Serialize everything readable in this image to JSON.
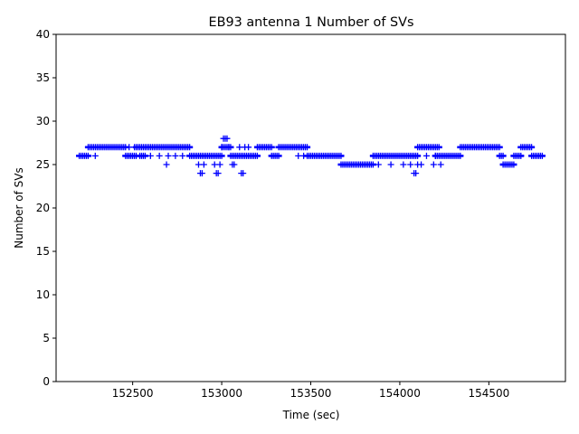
{
  "chart_data": {
    "type": "scatter",
    "title": "EB93 antenna 1 Number of SVs",
    "xlabel": "Time (sec)",
    "ylabel": "Number of SVs",
    "xlim": [
      152070,
      154930
    ],
    "ylim": [
      0,
      40
    ],
    "xticks": [
      152500,
      153000,
      153500,
      154000,
      154500
    ],
    "yticks": [
      0,
      5,
      10,
      15,
      20,
      25,
      30,
      35,
      40
    ],
    "grid": false,
    "marker": "+",
    "marker_color": "#0000ff",
    "series": [
      {
        "segments": [
          {
            "x0": 152200,
            "x1": 152250,
            "y": 26
          },
          {
            "x0": 152250,
            "x1": 152460,
            "y": 27
          },
          {
            "x0": 152460,
            "x1": 152520,
            "y": 26
          },
          {
            "x0": 152520,
            "x1": 152560,
            "y": 27
          },
          {
            "x0": 152540,
            "x1": 152570,
            "y": 26
          },
          {
            "x0": 152570,
            "x1": 152820,
            "y": 27
          },
          {
            "x0": 152820,
            "x1": 153000,
            "y": 26
          },
          {
            "x0": 153000,
            "x1": 153050,
            "y": 27
          },
          {
            "x0": 153050,
            "x1": 153200,
            "y": 26
          },
          {
            "x0": 153200,
            "x1": 153280,
            "y": 27
          },
          {
            "x0": 153280,
            "x1": 153320,
            "y": 26
          },
          {
            "x0": 153320,
            "x1": 153480,
            "y": 27
          },
          {
            "x0": 153480,
            "x1": 153670,
            "y": 26
          },
          {
            "x0": 153670,
            "x1": 153850,
            "y": 25
          },
          {
            "x0": 153850,
            "x1": 154100,
            "y": 26
          },
          {
            "x0": 154100,
            "x1": 154220,
            "y": 27
          },
          {
            "x0": 154200,
            "x1": 154340,
            "y": 26
          },
          {
            "x0": 154340,
            "x1": 154560,
            "y": 27
          },
          {
            "x0": 154560,
            "x1": 154580,
            "y": 26
          },
          {
            "x0": 154580,
            "x1": 154640,
            "y": 25
          },
          {
            "x0": 154640,
            "x1": 154680,
            "y": 26
          },
          {
            "x0": 154680,
            "x1": 154740,
            "y": 27
          },
          {
            "x0": 154740,
            "x1": 154800,
            "y": 26
          }
        ],
        "points": [
          {
            "x": 152290,
            "y": 26
          },
          {
            "x": 152480,
            "y": 27
          },
          {
            "x": 152510,
            "y": 27
          },
          {
            "x": 152600,
            "y": 26
          },
          {
            "x": 152650,
            "y": 26
          },
          {
            "x": 152690,
            "y": 25
          },
          {
            "x": 152700,
            "y": 26
          },
          {
            "x": 152740,
            "y": 26
          },
          {
            "x": 152780,
            "y": 26
          },
          {
            "x": 152870,
            "y": 25
          },
          {
            "x": 152880,
            "y": 24
          },
          {
            "x": 152890,
            "y": 24
          },
          {
            "x": 152900,
            "y": 25
          },
          {
            "x": 152960,
            "y": 25
          },
          {
            "x": 152970,
            "y": 24
          },
          {
            "x": 152980,
            "y": 24
          },
          {
            "x": 152990,
            "y": 25
          },
          {
            "x": 153000,
            "y": 27
          },
          {
            "x": 153010,
            "y": 28
          },
          {
            "x": 153020,
            "y": 28
          },
          {
            "x": 153030,
            "y": 28
          },
          {
            "x": 153040,
            "y": 27
          },
          {
            "x": 153060,
            "y": 25
          },
          {
            "x": 153070,
            "y": 25
          },
          {
            "x": 153100,
            "y": 27
          },
          {
            "x": 153110,
            "y": 24
          },
          {
            "x": 153120,
            "y": 24
          },
          {
            "x": 153130,
            "y": 27
          },
          {
            "x": 153150,
            "y": 27
          },
          {
            "x": 153430,
            "y": 26
          },
          {
            "x": 153460,
            "y": 26
          },
          {
            "x": 153950,
            "y": 25
          },
          {
            "x": 154020,
            "y": 25
          },
          {
            "x": 154060,
            "y": 25
          },
          {
            "x": 154080,
            "y": 24
          },
          {
            "x": 154090,
            "y": 24
          },
          {
            "x": 154100,
            "y": 25
          },
          {
            "x": 154120,
            "y": 25
          },
          {
            "x": 154150,
            "y": 26
          },
          {
            "x": 154190,
            "y": 25
          },
          {
            "x": 154200,
            "y": 26
          },
          {
            "x": 154230,
            "y": 25
          },
          {
            "x": 153880,
            "y": 25
          }
        ]
      }
    ]
  }
}
